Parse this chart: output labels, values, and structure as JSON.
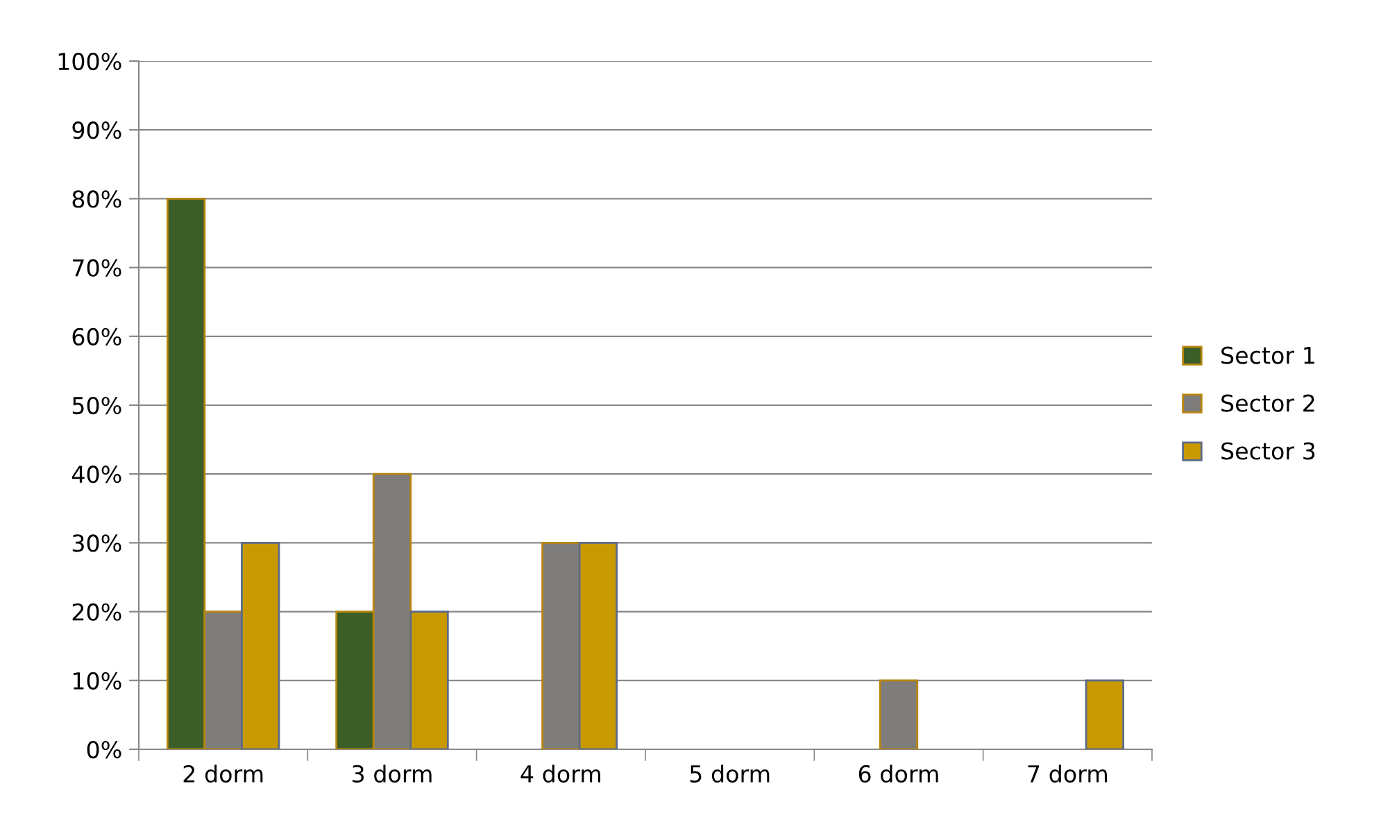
{
  "chart_data": {
    "type": "bar",
    "categories": [
      "2 dorm",
      "3 dorm",
      "4 dorm",
      "5 dorm",
      "6 dorm",
      "7 dorm"
    ],
    "series": [
      {
        "name": "Sector 1",
        "color": "#3b5e27",
        "values": [
          80,
          20,
          0,
          0,
          0,
          0
        ]
      },
      {
        "name": "Sector 2",
        "color": "#7f7c7c",
        "values": [
          20,
          40,
          30,
          0,
          10,
          0
        ]
      },
      {
        "name": "Sector 3",
        "color": "#c89a00",
        "values": [
          30,
          20,
          30,
          0,
          0,
          10
        ]
      }
    ],
    "ylim": [
      0,
      100
    ],
    "yticks": [
      {
        "value": 0,
        "label": "0%"
      },
      {
        "value": 10,
        "label": "10%"
      },
      {
        "value": 20,
        "label": "20%"
      },
      {
        "value": 30,
        "label": "30%"
      },
      {
        "value": 40,
        "label": "40%"
      },
      {
        "value": 50,
        "label": "50%"
      },
      {
        "value": 60,
        "label": "60%"
      },
      {
        "value": 70,
        "label": "70%"
      },
      {
        "value": 80,
        "label": "80%"
      },
      {
        "value": 90,
        "label": "90%"
      },
      {
        "value": 100,
        "label": "100%"
      }
    ],
    "grid": "y",
    "legend": "right"
  }
}
